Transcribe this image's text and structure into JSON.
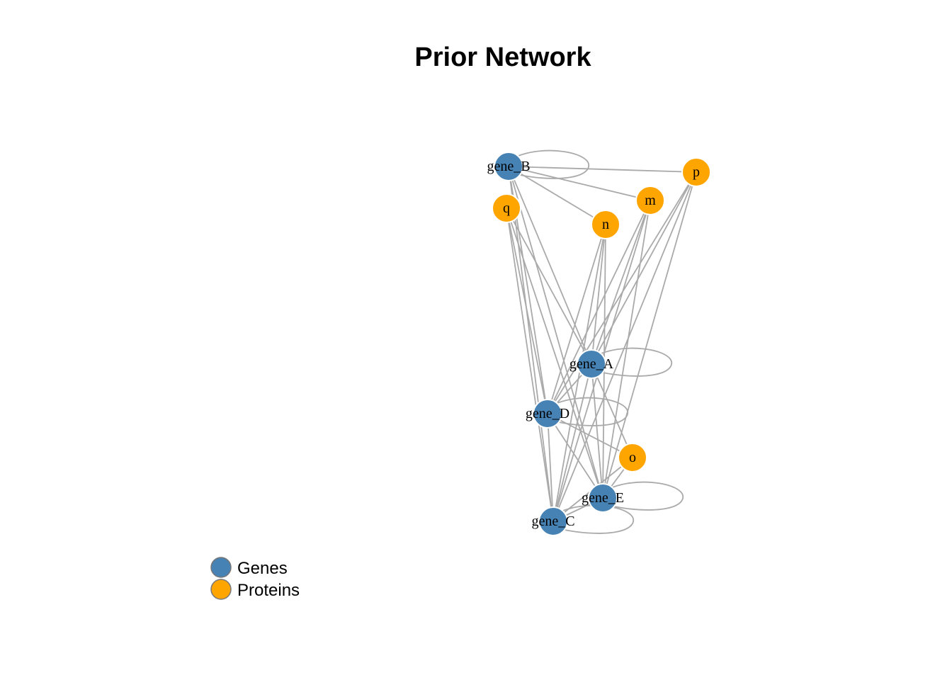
{
  "title": "Prior Network",
  "colors": {
    "genes": "#4682B4",
    "proteins": "#FFA500",
    "edge": "#AAAAAA"
  },
  "legend": [
    {
      "label": "Genes",
      "group": "genes"
    },
    {
      "label": "Proteins",
      "group": "proteins"
    }
  ],
  "nodes": [
    {
      "id": "gene_B",
      "label": "gene_B",
      "group": "genes"
    },
    {
      "id": "p",
      "label": "p",
      "group": "proteins"
    },
    {
      "id": "q",
      "label": "q",
      "group": "proteins"
    },
    {
      "id": "m",
      "label": "m",
      "group": "proteins"
    },
    {
      "id": "n",
      "label": "n",
      "group": "proteins"
    },
    {
      "id": "gene_A",
      "label": "gene_A",
      "group": "genes"
    },
    {
      "id": "gene_D",
      "label": "gene_D",
      "group": "genes"
    },
    {
      "id": "o",
      "label": "o",
      "group": "proteins"
    },
    {
      "id": "gene_E",
      "label": "gene_E",
      "group": "genes"
    },
    {
      "id": "gene_C",
      "label": "gene_C",
      "group": "genes"
    }
  ],
  "edges": [
    [
      "gene_B",
      "gene_B"
    ],
    [
      "gene_A",
      "gene_A"
    ],
    [
      "gene_D",
      "gene_D"
    ],
    [
      "gene_E",
      "gene_E"
    ],
    [
      "gene_C",
      "gene_C"
    ],
    [
      "gene_B",
      "p"
    ],
    [
      "gene_B",
      "m"
    ],
    [
      "gene_B",
      "n"
    ],
    [
      "gene_B",
      "gene_A"
    ],
    [
      "gene_B",
      "gene_D"
    ],
    [
      "gene_B",
      "gene_E"
    ],
    [
      "gene_B",
      "gene_C"
    ],
    [
      "q",
      "gene_A"
    ],
    [
      "q",
      "gene_D"
    ],
    [
      "q",
      "gene_E"
    ],
    [
      "q",
      "gene_C"
    ],
    [
      "n",
      "gene_A"
    ],
    [
      "n",
      "gene_D"
    ],
    [
      "n",
      "gene_E"
    ],
    [
      "n",
      "gene_C"
    ],
    [
      "m",
      "gene_A"
    ],
    [
      "m",
      "gene_D"
    ],
    [
      "m",
      "gene_E"
    ],
    [
      "m",
      "gene_C"
    ],
    [
      "p",
      "gene_A"
    ],
    [
      "p",
      "gene_D"
    ],
    [
      "p",
      "gene_E"
    ],
    [
      "p",
      "gene_C"
    ],
    [
      "gene_A",
      "gene_D"
    ],
    [
      "gene_A",
      "gene_E"
    ],
    [
      "gene_A",
      "gene_C"
    ],
    [
      "gene_A",
      "o"
    ],
    [
      "gene_D",
      "gene_E"
    ],
    [
      "gene_D",
      "gene_C"
    ],
    [
      "gene_D",
      "o"
    ],
    [
      "gene_E",
      "gene_C"
    ],
    [
      "o",
      "gene_C"
    ],
    [
      "o",
      "gene_E"
    ]
  ]
}
